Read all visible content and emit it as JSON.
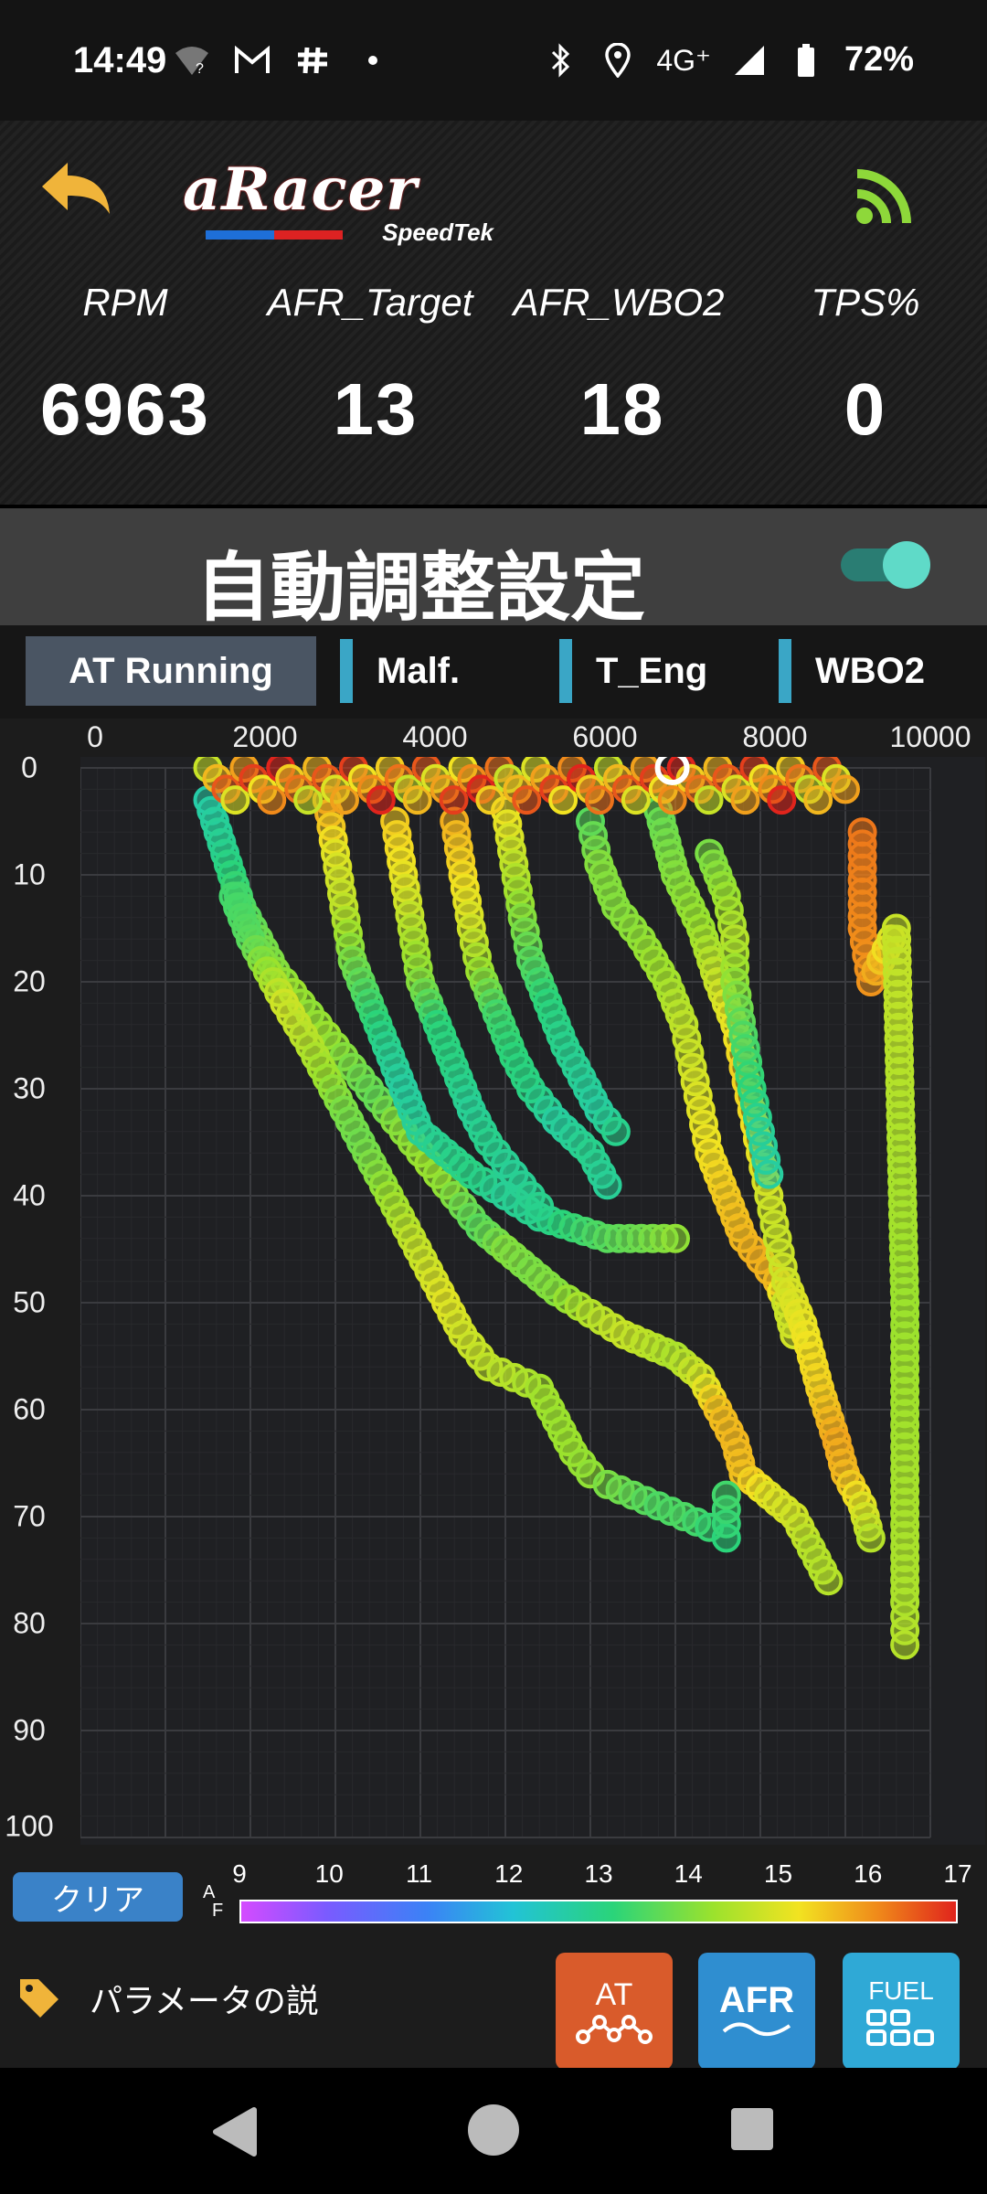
{
  "status_bar": {
    "time": "14:49",
    "network": "4G⁺",
    "battery": "72%"
  },
  "header": {
    "logo_main": "aRacer",
    "logo_sub": "SpeedTek",
    "metrics": [
      {
        "label": "RPM",
        "value": "6963"
      },
      {
        "label": "AFR_Target",
        "value": "13"
      },
      {
        "label": "AFR_WBO2",
        "value": "18"
      },
      {
        "label": "TPS%",
        "value": "0"
      }
    ]
  },
  "auto_adjust": {
    "title": "自動調整設定",
    "toggle_on": true
  },
  "tabs": [
    "AT Running",
    "Malf.",
    "T_Eng",
    "WBO2"
  ],
  "chart_data": {
    "type": "scatter",
    "x_ticks": [
      "0",
      "2000",
      "4000",
      "6000",
      "8000",
      "10000"
    ],
    "y_ticks": [
      "0",
      "10",
      "20",
      "30",
      "40",
      "50",
      "60",
      "70",
      "80",
      "90",
      "100"
    ],
    "xlim": [
      0,
      10000
    ],
    "ylim": [
      0,
      100
    ],
    "y_axis_inverted": true,
    "grid": true,
    "color_scale": {
      "label": "A/F",
      "min": 9,
      "max": 17,
      "ticks": [
        "9",
        "10",
        "11",
        "12",
        "13",
        "14",
        "15",
        "16",
        "17"
      ]
    },
    "traces": [
      {
        "points": [
          [
            1500,
            3
          ],
          [
            1700,
            8
          ],
          [
            1900,
            13
          ],
          [
            2100,
            16
          ],
          [
            2300,
            19
          ],
          [
            2500,
            21
          ],
          [
            2700,
            23
          ],
          [
            2900,
            25
          ],
          [
            3100,
            27
          ],
          [
            3300,
            29
          ],
          [
            3500,
            31
          ],
          [
            3700,
            33
          ],
          [
            3900,
            35
          ],
          [
            4100,
            37
          ],
          [
            4300,
            39
          ],
          [
            4500,
            41
          ],
          [
            4700,
            43
          ],
          [
            5000,
            45
          ],
          [
            5300,
            47
          ],
          [
            5600,
            49
          ],
          [
            6000,
            51
          ],
          [
            6400,
            53
          ],
          [
            7000,
            55
          ],
          [
            7300,
            57
          ],
          [
            7500,
            60
          ],
          [
            7700,
            63
          ],
          [
            7800,
            66
          ],
          [
            8100,
            68
          ],
          [
            8400,
            70
          ],
          [
            8600,
            73
          ],
          [
            8800,
            76
          ]
        ],
        "afr": [
          12.5,
          12.8,
          13.3,
          13.6,
          13.8,
          14.0,
          13.9,
          14.0,
          13.8,
          13.6,
          13.5,
          13.8,
          13.9,
          14.0,
          13.9,
          13.6,
          13.4,
          13.8,
          13.7,
          13.8,
          14.3,
          14.5,
          14.2,
          14.6,
          15.4,
          15.5,
          15.4,
          14.8,
          14.6,
          14.3,
          14.3
        ]
      },
      {
        "points": [
          [
            1800,
            12
          ],
          [
            2000,
            16
          ],
          [
            2200,
            19
          ],
          [
            2400,
            22
          ],
          [
            2700,
            26
          ],
          [
            2900,
            29
          ],
          [
            3100,
            32
          ],
          [
            3300,
            35
          ],
          [
            3500,
            38
          ],
          [
            3700,
            41
          ],
          [
            3900,
            44
          ],
          [
            4100,
            47
          ],
          [
            4300,
            50
          ],
          [
            4500,
            53
          ],
          [
            4800,
            56
          ],
          [
            5100,
            57
          ],
          [
            5400,
            58
          ],
          [
            5600,
            61
          ],
          [
            5800,
            64
          ],
          [
            6000,
            66
          ],
          [
            6200,
            67
          ],
          [
            6500,
            68
          ],
          [
            6800,
            69
          ],
          [
            7100,
            70
          ],
          [
            7400,
            71
          ],
          [
            7600,
            72
          ],
          [
            7600,
            68
          ]
        ],
        "afr": [
          13.2,
          13.4,
          14.0,
          14.6,
          14.3,
          14.0,
          13.7,
          13.6,
          13.8,
          14.1,
          14.4,
          14.6,
          14.8,
          14.6,
          14.4,
          14.3,
          14.1,
          14.0,
          14.0,
          13.9,
          13.7,
          13.5,
          13.3,
          13.3,
          13.1,
          13.0,
          13.2
        ]
      },
      {
        "points": [
          [
            2900,
            3
          ],
          [
            3000,
            8
          ],
          [
            3100,
            13
          ],
          [
            3200,
            18
          ],
          [
            3400,
            22
          ],
          [
            3600,
            26
          ],
          [
            3800,
            30
          ],
          [
            4000,
            34
          ],
          [
            4300,
            36
          ],
          [
            4600,
            38
          ],
          [
            5000,
            40
          ],
          [
            5400,
            42
          ],
          [
            5800,
            43
          ],
          [
            6200,
            44
          ],
          [
            6600,
            44
          ],
          [
            7000,
            44
          ]
        ],
        "afr": [
          15.8,
          14.8,
          14.4,
          13.7,
          13.2,
          12.8,
          12.6,
          12.7,
          12.8,
          12.9,
          12.7,
          12.8,
          13.1,
          13.4,
          13.6,
          13.9
        ]
      },
      {
        "points": [
          [
            3700,
            5
          ],
          [
            3800,
            10
          ],
          [
            3900,
            15
          ],
          [
            4000,
            20
          ],
          [
            4200,
            24
          ],
          [
            4400,
            28
          ],
          [
            4600,
            32
          ],
          [
            4800,
            35
          ],
          [
            5100,
            38
          ],
          [
            5400,
            41
          ]
        ],
        "afr": [
          15.3,
          14.9,
          14.3,
          13.8,
          13.0,
          12.9,
          12.7,
          12.8,
          12.7,
          12.8
        ]
      },
      {
        "points": [
          [
            4400,
            5
          ],
          [
            4500,
            10
          ],
          [
            4600,
            15
          ],
          [
            4700,
            19
          ],
          [
            4900,
            23
          ],
          [
            5100,
            27
          ],
          [
            5300,
            30
          ],
          [
            5600,
            33
          ],
          [
            6000,
            36
          ],
          [
            6200,
            39
          ]
        ],
        "afr": [
          15.6,
          15.1,
          14.6,
          14.0,
          13.2,
          13.0,
          12.9,
          12.6,
          12.8,
          12.7
        ]
      },
      {
        "points": [
          [
            5000,
            4
          ],
          [
            5100,
            9
          ],
          [
            5200,
            14
          ],
          [
            5300,
            18
          ],
          [
            5500,
            22
          ],
          [
            5700,
            26
          ],
          [
            5900,
            29
          ],
          [
            6100,
            32
          ],
          [
            6300,
            34
          ]
        ],
        "afr": [
          15.0,
          14.4,
          13.8,
          13.4,
          13.0,
          12.8,
          12.7,
          12.6,
          12.8
        ]
      },
      {
        "points": [
          [
            6000,
            5
          ],
          [
            6100,
            9
          ],
          [
            6300,
            13
          ],
          [
            6600,
            16
          ],
          [
            6900,
            20
          ],
          [
            7100,
            24
          ],
          [
            7200,
            28
          ],
          [
            7300,
            32
          ],
          [
            7400,
            36
          ],
          [
            7600,
            40
          ],
          [
            7800,
            44
          ],
          [
            8000,
            46
          ],
          [
            8200,
            48
          ],
          [
            8300,
            50
          ],
          [
            8400,
            53
          ]
        ],
        "afr": [
          13.4,
          13.8,
          13.8,
          13.9,
          14.1,
          14.4,
          14.6,
          14.8,
          15.0,
          15.3,
          15.5,
          15.6,
          15.5,
          14.5,
          14.6
        ]
      },
      {
        "points": [
          [
            6800,
            4
          ],
          [
            7000,
            10
          ],
          [
            7300,
            15
          ],
          [
            7500,
            20
          ],
          [
            7700,
            24
          ],
          [
            7800,
            28
          ],
          [
            7900,
            32
          ],
          [
            8000,
            36
          ],
          [
            8100,
            40
          ],
          [
            8200,
            44
          ],
          [
            8300,
            48
          ],
          [
            8500,
            52
          ],
          [
            8700,
            58
          ],
          [
            8900,
            63
          ],
          [
            9000,
            66
          ],
          [
            9200,
            69
          ],
          [
            9300,
            72
          ]
        ],
        "afr": [
          13.5,
          13.8,
          14.0,
          14.5,
          14.9,
          15.2,
          15.1,
          14.9,
          14.6,
          14.5,
          14.6,
          14.9,
          15.2,
          15.7,
          15.5,
          14.8,
          14.3
        ]
      },
      {
        "points": [
          [
            7400,
            8
          ],
          [
            7600,
            12
          ],
          [
            7700,
            16
          ],
          [
            7700,
            20
          ],
          [
            7800,
            25
          ],
          [
            7900,
            30
          ],
          [
            8000,
            34
          ],
          [
            8100,
            38
          ]
        ],
        "afr": [
          13.7,
          14.0,
          14.3,
          13.9,
          13.3,
          13.0,
          12.7,
          12.6
        ]
      },
      {
        "points": [
          [
            9200,
            6
          ],
          [
            9200,
            15
          ],
          [
            9300,
            20
          ],
          [
            9600,
            15
          ],
          [
            9700,
            50
          ],
          [
            9700,
            78
          ],
          [
            9700,
            82
          ]
        ],
        "afr": [
          16.2,
          16.0,
          15.9,
          14.5,
          14.0,
          14.2,
          14.3
        ]
      }
    ],
    "top_band": {
      "y": 0,
      "x_from": 1500,
      "x_to": 9000,
      "afr_range": [
        14.5,
        17
      ]
    },
    "current_point": {
      "x": 6963,
      "y": 0
    }
  },
  "scale_bar": {
    "clear_label": "クリア",
    "af_top": "A",
    "af_bottom": "F"
  },
  "bottom_bar": {
    "param_label": "パラメータの説",
    "buttons": [
      {
        "id": "at",
        "label": "AT"
      },
      {
        "id": "afr",
        "label": "AFR"
      },
      {
        "id": "fuel",
        "label": "FUEL"
      }
    ]
  }
}
